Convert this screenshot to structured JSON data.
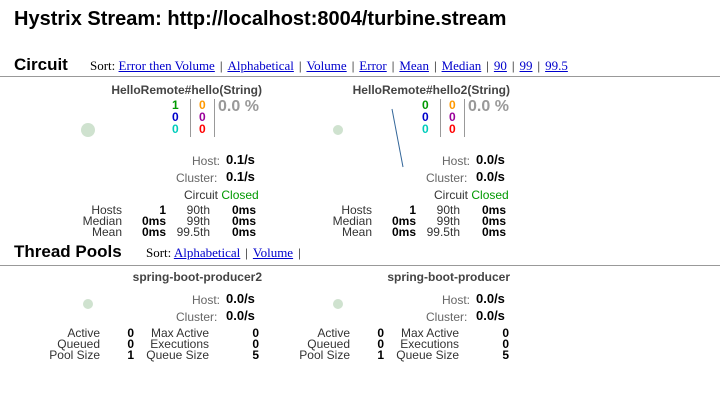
{
  "page": {
    "title": "Hystrix Stream: http://localhost:8004/turbine.stream"
  },
  "circuit_section": {
    "title": "Circuit",
    "sort_label": "Sort:",
    "sort_options": [
      "Error then Volume",
      "Alphabetical",
      "Volume",
      "Error",
      "Mean",
      "Median",
      "90",
      "99",
      "99.5"
    ]
  },
  "circuits": [
    {
      "name": "HelloRemote#hello(String)",
      "success": "1",
      "short_circuited": "0",
      "bad_request": "0",
      "timeout": "0",
      "rejected": "0",
      "failure": "0",
      "error_pct": "0.0 %",
      "host_label": "Host:",
      "host_rate": "0.1/s",
      "cluster_label": "Cluster:",
      "cluster_rate": "0.1/s",
      "circuit_label": "Circuit",
      "circuit_status": "Closed",
      "stats": {
        "hosts_label": "Hosts",
        "hosts": "1",
        "median_label": "Median",
        "median": "0ms",
        "mean_label": "Mean",
        "mean": "0ms",
        "p90_label": "90th",
        "p90": "0ms",
        "p99_label": "99th",
        "p99": "0ms",
        "p995_label": "99.5th",
        "p995": "0ms"
      }
    },
    {
      "name": "HelloRemote#hello2(String)",
      "success": "0",
      "short_circuited": "0",
      "bad_request": "0",
      "timeout": "0",
      "rejected": "0",
      "failure": "0",
      "error_pct": "0.0 %",
      "host_label": "Host:",
      "host_rate": "0.0/s",
      "cluster_label": "Cluster:",
      "cluster_rate": "0.0/s",
      "circuit_label": "Circuit",
      "circuit_status": "Closed",
      "stats": {
        "hosts_label": "Hosts",
        "hosts": "1",
        "median_label": "Median",
        "median": "0ms",
        "mean_label": "Mean",
        "mean": "0ms",
        "p90_label": "90th",
        "p90": "0ms",
        "p99_label": "99th",
        "p99": "0ms",
        "p995_label": "99.5th",
        "p995": "0ms"
      }
    }
  ],
  "threadpool_section": {
    "title": "Thread Pools",
    "sort_label": "Sort:",
    "sort_options": [
      "Alphabetical",
      "Volume"
    ]
  },
  "threadpools": [
    {
      "name": "spring-boot-producer2",
      "host_label": "Host:",
      "host_rate": "0.0/s",
      "cluster_label": "Cluster:",
      "cluster_rate": "0.0/s",
      "stats": {
        "active_label": "Active",
        "active": "0",
        "queued_label": "Queued",
        "queued": "0",
        "pool_size_label": "Pool Size",
        "pool_size": "1",
        "max_active_label": "Max Active",
        "max_active": "0",
        "executions_label": "Executions",
        "executions": "0",
        "queue_size_label": "Queue Size",
        "queue_size": "5"
      }
    },
    {
      "name": "spring-boot-producer",
      "host_label": "Host:",
      "host_rate": "0.0/s",
      "cluster_label": "Cluster:",
      "cluster_rate": "0.0/s",
      "stats": {
        "active_label": "Active",
        "active": "0",
        "queued_label": "Queued",
        "queued": "0",
        "pool_size_label": "Pool Size",
        "pool_size": "1",
        "max_active_label": "Max Active",
        "max_active": "0",
        "executions_label": "Executions",
        "executions": "0",
        "queue_size_label": "Queue Size",
        "queue_size": "5"
      }
    }
  ],
  "colors": {
    "success": "#009900",
    "short_circuited": "#0000cc",
    "bad_request": "#00ccbb",
    "timeout": "#ff9900",
    "rejected": "#990099",
    "failure": "#ff0000",
    "bubble": "#cfe2cf",
    "link": "#0000cc"
  }
}
